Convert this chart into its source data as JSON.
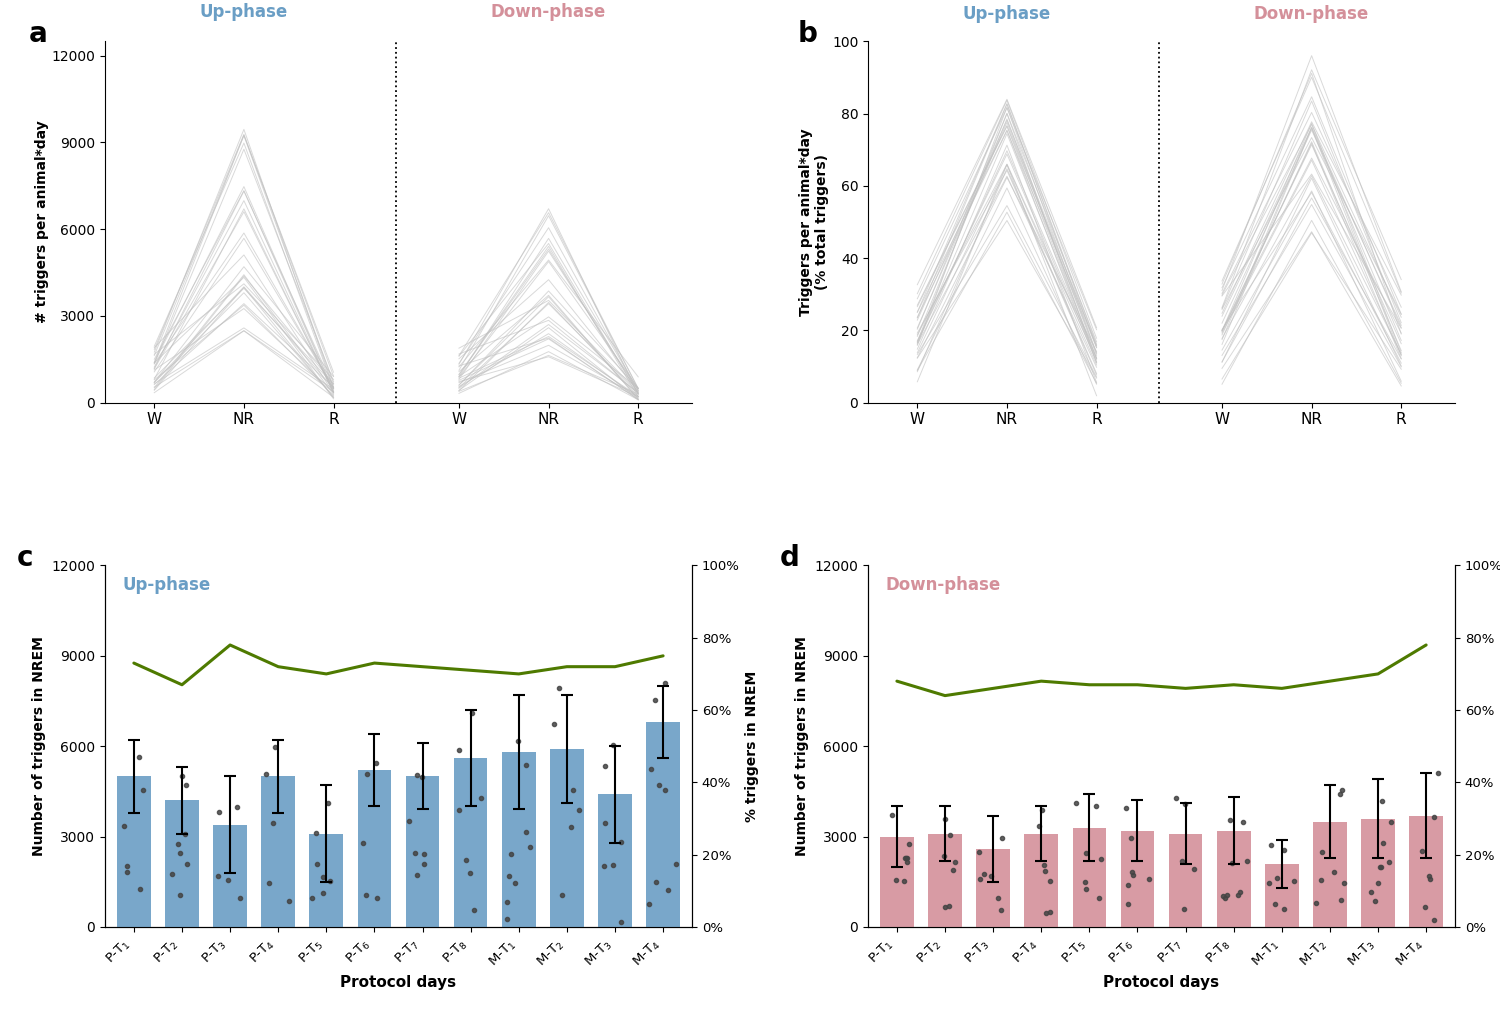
{
  "panel_a_title": "Up-phase",
  "panel_a_title2": "Down-phase",
  "panel_b_title": "Up-phase",
  "panel_b_title2": "Down-phase",
  "panel_c_title": "Up-phase",
  "panel_d_title": "Down-phase",
  "blue_color": "#6A9EC5",
  "pink_color": "#D4909A",
  "green_color": "#4E7A00",
  "bar_blue": "#6A9EC5",
  "bar_pink": "#D4909A",
  "xlabel_cd": "Protocol days",
  "ylabel_a": "# triggers per animal*day",
  "ylabel_b": "Triggers per animal*day\n(% total triggers)",
  "ylabel_c": "Number of triggers in NREM",
  "ylabel_d": "Number of triggers in NREM",
  "ylabel_c_right": "% triggers in NREM",
  "ylabel_d_right": "% triggers in NREM",
  "protocol_days": [
    "P-T$_1$",
    "P-T$_2$",
    "P-T$_3$",
    "P-T$_4$",
    "P-T$_5$",
    "P-T$_6$",
    "P-T$_7$",
    "P-T$_8$",
    "M-T$_1$",
    "M-T$_2$",
    "M-T$_3$",
    "M-T$_4$"
  ],
  "up_bar_heights": [
    5000,
    4200,
    3400,
    5000,
    3100,
    5200,
    5000,
    5600,
    5800,
    5900,
    4400,
    6800
  ],
  "up_bar_errors": [
    1200,
    1100,
    1600,
    1200,
    1600,
    1200,
    1100,
    1600,
    1900,
    1800,
    1600,
    1200
  ],
  "up_green_line": [
    73,
    67,
    78,
    72,
    70,
    73,
    72,
    71,
    70,
    72,
    72,
    75
  ],
  "down_bar_heights": [
    3000,
    3100,
    2600,
    3100,
    3300,
    3200,
    3100,
    3200,
    2100,
    3500,
    3600,
    3700
  ],
  "down_bar_errors": [
    1000,
    900,
    1100,
    900,
    1100,
    1000,
    1000,
    1100,
    800,
    1200,
    1300,
    1400
  ],
  "down_green_line": [
    68,
    64,
    66,
    68,
    67,
    67,
    66,
    67,
    66,
    68,
    70,
    78
  ],
  "ylim_a": [
    0,
    12500
  ],
  "ylim_b": [
    0,
    100
  ],
  "ylim_cd": [
    0,
    12000
  ],
  "yticks_a": [
    0,
    3000,
    6000,
    9000,
    12000
  ],
  "yticks_b": [
    0,
    20,
    40,
    60,
    80,
    100
  ],
  "yticks_cd": [
    0,
    3000,
    6000,
    9000,
    12000
  ],
  "n_lines": 30,
  "background_color": "#FFFFFF"
}
